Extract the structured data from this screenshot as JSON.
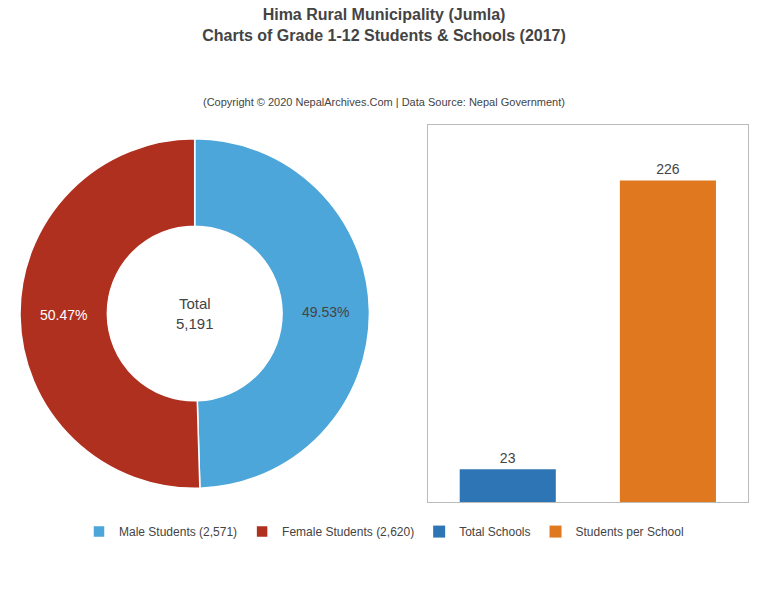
{
  "chart_data": [
    {
      "type": "pie",
      "title": "Hima Rural Municipality (Jumla)\nCharts of Grade 1-12 Students & Schools (2017)",
      "subtitle": "(Copyright © 2020 NepalArchives.Com | Data Source: Nepal Government)",
      "categories": [
        "Male Students (2,571)",
        "Female Students (2,620)"
      ],
      "values": [
        49.53,
        50.47
      ],
      "value_labels": [
        "49.53%",
        "50.47%"
      ],
      "colors": [
        "#4da6d9",
        "#b03020"
      ],
      "data_labels": true,
      "annotations": [
        "Total\n5,191"
      ],
      "legend": "bottom"
    },
    {
      "type": "bar",
      "categories": [
        "Total Schools",
        "Students per School"
      ],
      "values": [
        23,
        226
      ],
      "colors": [
        "#2e75b6",
        "#e07820"
      ],
      "ylim": [
        0,
        265
      ],
      "yticks": [],
      "data_labels": true,
      "tick_labels": false,
      "grid": false,
      "legend": "bottom"
    }
  ]
}
